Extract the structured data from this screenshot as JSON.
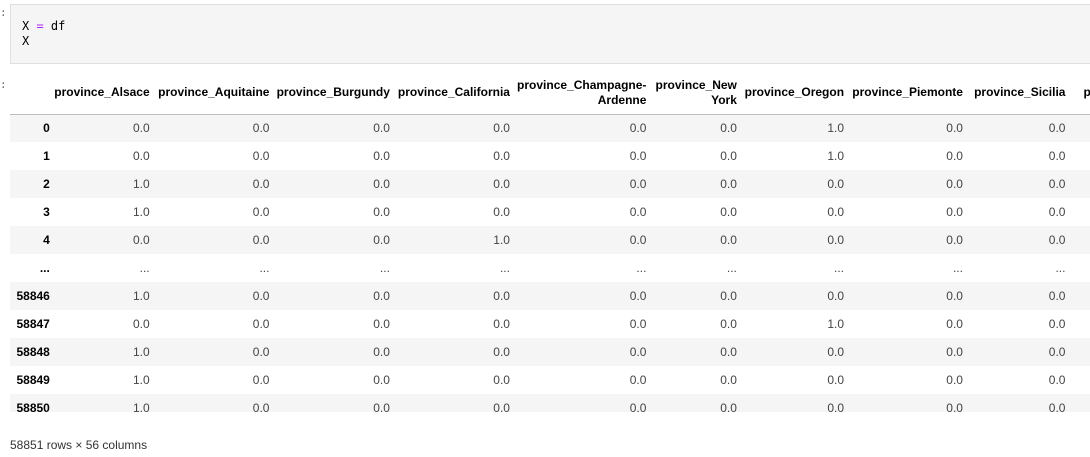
{
  "code_cell": {
    "lines": [
      {
        "lhs": "X ",
        "op": "=",
        "rhs": " df"
      },
      {
        "lhs": "X",
        "op": "",
        "rhs": ""
      }
    ]
  },
  "dataframe": {
    "columns": [
      "",
      "province_Alsace",
      "province_Aquitaine",
      "province_Burgundy",
      "province_California",
      "province_Champagne-Ardenne",
      "province_New York",
      "province_Oregon",
      "province_Piemonte",
      "province_Sicilia",
      "p"
    ],
    "rows": [
      {
        "index": "0",
        "values": [
          "0.0",
          "0.0",
          "0.0",
          "0.0",
          "0.0",
          "0.0",
          "1.0",
          "0.0",
          "0.0"
        ]
      },
      {
        "index": "1",
        "values": [
          "0.0",
          "0.0",
          "0.0",
          "0.0",
          "0.0",
          "0.0",
          "1.0",
          "0.0",
          "0.0"
        ]
      },
      {
        "index": "2",
        "values": [
          "1.0",
          "0.0",
          "0.0",
          "0.0",
          "0.0",
          "0.0",
          "0.0",
          "0.0",
          "0.0"
        ]
      },
      {
        "index": "3",
        "values": [
          "1.0",
          "0.0",
          "0.0",
          "0.0",
          "0.0",
          "0.0",
          "0.0",
          "0.0",
          "0.0"
        ]
      },
      {
        "index": "4",
        "values": [
          "0.0",
          "0.0",
          "0.0",
          "1.0",
          "0.0",
          "0.0",
          "0.0",
          "0.0",
          "0.0"
        ]
      },
      {
        "index": "...",
        "values": [
          "...",
          "...",
          "...",
          "...",
          "...",
          "...",
          "...",
          "...",
          "..."
        ]
      },
      {
        "index": "58846",
        "values": [
          "1.0",
          "0.0",
          "0.0",
          "0.0",
          "0.0",
          "0.0",
          "0.0",
          "0.0",
          "0.0"
        ]
      },
      {
        "index": "58847",
        "values": [
          "0.0",
          "0.0",
          "0.0",
          "0.0",
          "0.0",
          "0.0",
          "1.0",
          "0.0",
          "0.0"
        ]
      },
      {
        "index": "58848",
        "values": [
          "1.0",
          "0.0",
          "0.0",
          "0.0",
          "0.0",
          "0.0",
          "0.0",
          "0.0",
          "0.0"
        ]
      },
      {
        "index": "58849",
        "values": [
          "1.0",
          "0.0",
          "0.0",
          "0.0",
          "0.0",
          "0.0",
          "0.0",
          "0.0",
          "0.0"
        ]
      },
      {
        "index": "58850",
        "values": [
          "1.0",
          "0.0",
          "0.0",
          "0.0",
          "0.0",
          "0.0",
          "0.0",
          "0.0",
          "0.0"
        ]
      }
    ],
    "shape_text": "58851 rows × 56 columns"
  }
}
